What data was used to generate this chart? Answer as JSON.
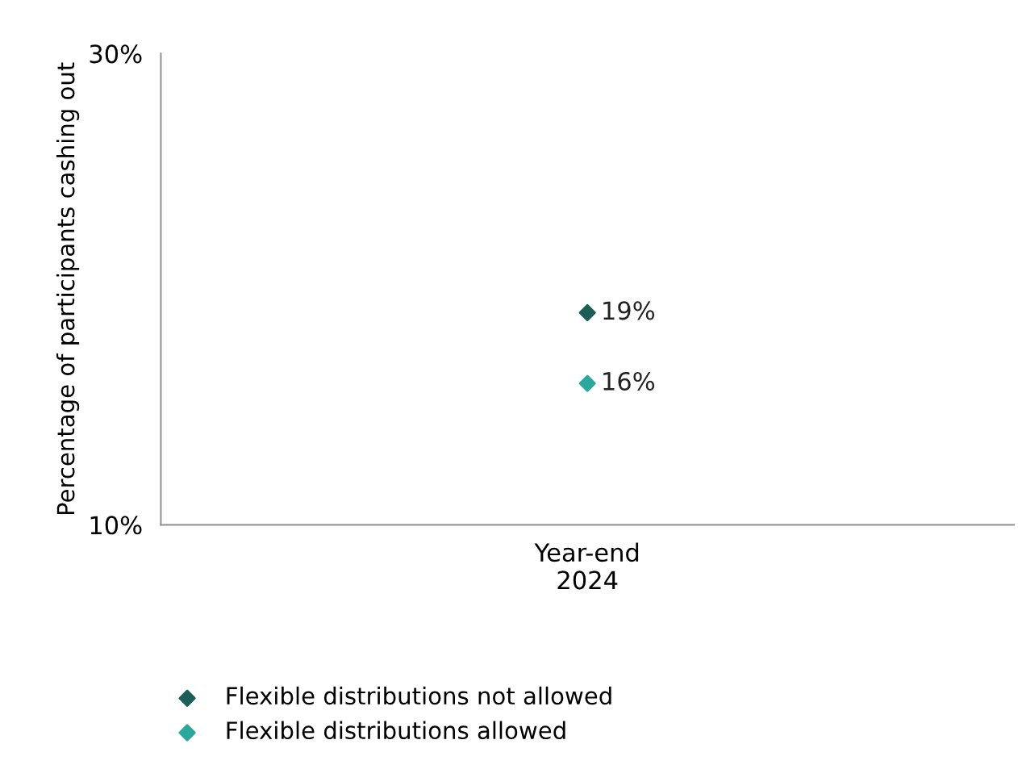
{
  "chart_data": {
    "type": "scatter",
    "ylabel": "Percentage of participants cashing out",
    "categories": [
      "Year-end\n2024"
    ],
    "series": [
      {
        "name": "Flexible distributions not allowed",
        "color": "#1d5f58",
        "values": [
          19
        ],
        "value_labels": [
          "19%"
        ]
      },
      {
        "name": "Flexible distributions allowed",
        "color": "#2ba89c",
        "values": [
          16
        ],
        "value_labels": [
          "16%"
        ]
      }
    ],
    "ylim": [
      10,
      30
    ],
    "yticks": [
      {
        "value": 10,
        "label": "10%"
      },
      {
        "value": 30,
        "label": "30%"
      }
    ],
    "marker": "diamond",
    "legend": "bottom",
    "grid": false
  }
}
